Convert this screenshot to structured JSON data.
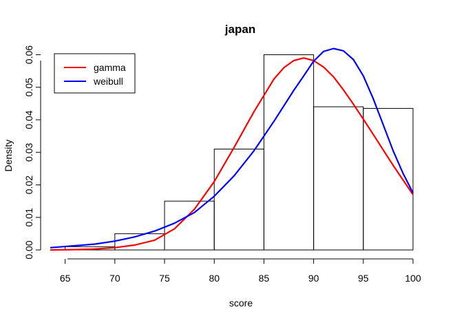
{
  "chart_data": {
    "type": "histogram",
    "title": "japan",
    "xlabel": "score",
    "ylabel": "Density",
    "xlim": [
      63.5,
      100
    ],
    "ylim": [
      0,
      0.062
    ],
    "x_ticks": [
      "65",
      "70",
      "75",
      "80",
      "85",
      "90",
      "95",
      "100"
    ],
    "y_ticks": [
      "0.00",
      "0.01",
      "0.02",
      "0.03",
      "0.04",
      "0.05",
      "0.06"
    ],
    "bins": [
      {
        "from": 65,
        "to": 70,
        "density": 0.001
      },
      {
        "from": 70,
        "to": 75,
        "density": 0.005
      },
      {
        "from": 75,
        "to": 80,
        "density": 0.015
      },
      {
        "from": 80,
        "to": 85,
        "density": 0.031
      },
      {
        "from": 85,
        "to": 90,
        "density": 0.06
      },
      {
        "from": 90,
        "to": 95,
        "density": 0.044
      },
      {
        "from": 95,
        "to": 100,
        "density": 0.0435
      }
    ],
    "series": [
      {
        "name": "gamma",
        "color": "#ff0000",
        "x": [
          63.5,
          66,
          68,
          70,
          72,
          74,
          76,
          78,
          80,
          82,
          84,
          86,
          87,
          88,
          89,
          90,
          91,
          92,
          93,
          94,
          95,
          96,
          98,
          100
        ],
        "y": [
          0.0,
          0.0001,
          0.0003,
          0.0007,
          0.0015,
          0.003,
          0.0065,
          0.0125,
          0.021,
          0.0315,
          0.0425,
          0.0525,
          0.056,
          0.0582,
          0.059,
          0.0582,
          0.0562,
          0.0532,
          0.0492,
          0.0448,
          0.0402,
          0.0355,
          0.026,
          0.017
        ]
      },
      {
        "name": "weibull",
        "color": "#0000ff",
        "x": [
          63.5,
          66,
          68,
          70,
          72,
          74,
          76,
          78,
          80,
          82,
          84,
          86,
          88,
          89,
          90,
          91,
          92,
          93,
          94,
          95,
          96,
          97,
          98,
          99,
          100
        ],
        "y": [
          0.0007,
          0.0013,
          0.0018,
          0.0027,
          0.004,
          0.0058,
          0.0082,
          0.0115,
          0.0165,
          0.0228,
          0.0305,
          0.0395,
          0.049,
          0.0535,
          0.058,
          0.061,
          0.0619,
          0.0612,
          0.0585,
          0.0535,
          0.0465,
          0.0385,
          0.0305,
          0.0235,
          0.0175
        ]
      }
    ],
    "legend": {
      "placement": "top-left",
      "entries": [
        {
          "label": "gamma",
          "color": "#ff0000"
        },
        {
          "label": "weibull",
          "color": "#0000ff"
        }
      ]
    },
    "grid": false
  }
}
